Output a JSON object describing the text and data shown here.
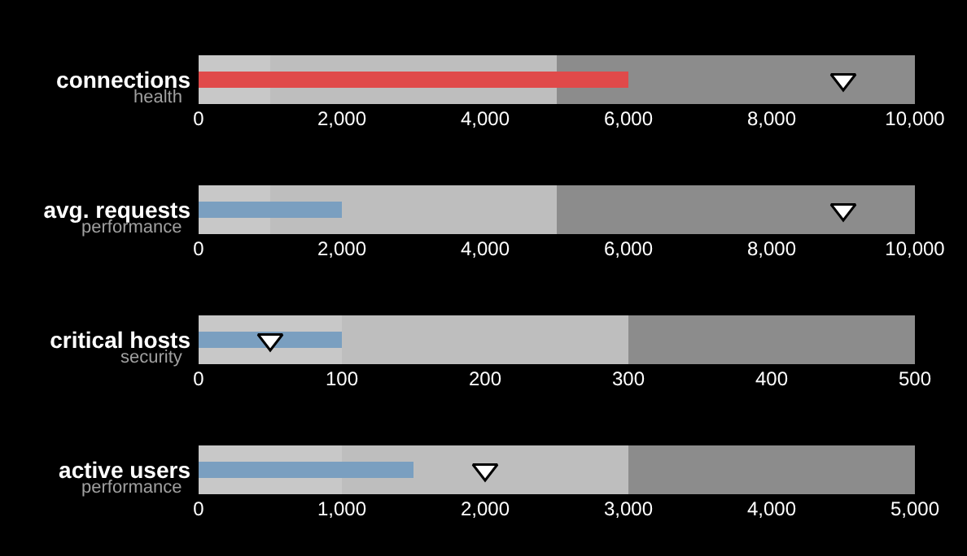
{
  "chart_data": [
    {
      "type": "bar",
      "orientation": "horizontal",
      "subtitle": "health",
      "categories": [
        "connections"
      ],
      "xlim": [
        0,
        10000
      ],
      "xticks": [
        {
          "value": 0,
          "label": "0"
        },
        {
          "value": 2000,
          "label": "2,000"
        },
        {
          "value": 4000,
          "label": "4,000"
        },
        {
          "value": 6000,
          "label": "6,000"
        },
        {
          "value": 8000,
          "label": "8,000"
        },
        {
          "value": 10000,
          "label": "10,000"
        }
      ],
      "bands": [
        {
          "axis": "x",
          "from": 0,
          "to": 1000,
          "color": "#c8c8c8"
        },
        {
          "axis": "x",
          "from": 1000,
          "to": 5000,
          "color": "#bebebe"
        },
        {
          "axis": "x",
          "from": 5000,
          "to": 10000,
          "color": "#8c8c8c"
        }
      ],
      "series": [
        {
          "color": "#e04a4a",
          "values": [
            6000
          ]
        },
        {
          "type": "scatter",
          "marker": "triangle",
          "color": "#ffffff",
          "values": [
            9000
          ]
        }
      ]
    },
    {
      "type": "bar",
      "orientation": "horizontal",
      "subtitle": "performance",
      "categories": [
        "avg. requests"
      ],
      "xlim": [
        0,
        10000
      ],
      "xticks": [
        {
          "value": 0,
          "label": "0"
        },
        {
          "value": 2000,
          "label": "2,000"
        },
        {
          "value": 4000,
          "label": "4,000"
        },
        {
          "value": 6000,
          "label": "6,000"
        },
        {
          "value": 8000,
          "label": "8,000"
        },
        {
          "value": 10000,
          "label": "10,000"
        }
      ],
      "bands": [
        {
          "axis": "x",
          "from": 0,
          "to": 1000,
          "color": "#c8c8c8"
        },
        {
          "axis": "x",
          "from": 1000,
          "to": 5000,
          "color": "#bebebe"
        },
        {
          "axis": "x",
          "from": 5000,
          "to": 10000,
          "color": "#8c8c8c"
        }
      ],
      "series": [
        {
          "color": "#7a9fc0",
          "values": [
            2000
          ]
        },
        {
          "type": "scatter",
          "marker": "triangle",
          "color": "#ffffff",
          "values": [
            9000
          ]
        }
      ]
    },
    {
      "type": "bar",
      "orientation": "horizontal",
      "subtitle": "security",
      "categories": [
        "critical hosts"
      ],
      "xlim": [
        0,
        500
      ],
      "xticks": [
        0,
        100,
        200,
        300,
        400,
        500
      ],
      "bands": [
        {
          "axis": "x",
          "from": 0,
          "to": 100,
          "color": "#c8c8c8"
        },
        {
          "axis": "x",
          "from": 100,
          "to": 300,
          "color": "#bebebe"
        },
        {
          "axis": "x",
          "from": 300,
          "to": 500,
          "color": "#8c8c8c"
        }
      ],
      "series": [
        {
          "color": "#7a9fc0",
          "values": [
            100
          ]
        },
        {
          "type": "scatter",
          "marker": "triangle",
          "color": "#ffffff",
          "values": [
            50
          ]
        }
      ]
    },
    {
      "type": "bar",
      "orientation": "horizontal",
      "subtitle": "performance",
      "categories": [
        "active users"
      ],
      "xlim": [
        0,
        5000
      ],
      "xticks": [
        {
          "value": 0,
          "label": "0"
        },
        {
          "value": 1000,
          "label": "1,000"
        },
        {
          "value": 2000,
          "label": "2,000"
        },
        {
          "value": 3000,
          "label": "3,000"
        },
        {
          "value": 4000,
          "label": "4,000"
        },
        {
          "value": 5000,
          "label": "5,000"
        }
      ],
      "bands": [
        {
          "axis": "x",
          "from": 0,
          "to": 1000,
          "color": "#c8c8c8"
        },
        {
          "axis": "x",
          "from": 1000,
          "to": 3000,
          "color": "#bebebe"
        },
        {
          "axis": "x",
          "from": 3000,
          "to": 5000,
          "color": "#8c8c8c"
        }
      ],
      "series": [
        {
          "color": "#7a9fc0",
          "values": [
            1500
          ]
        },
        {
          "type": "scatter",
          "marker": "triangle",
          "color": "#ffffff",
          "values": [
            2000
          ]
        }
      ]
    }
  ]
}
